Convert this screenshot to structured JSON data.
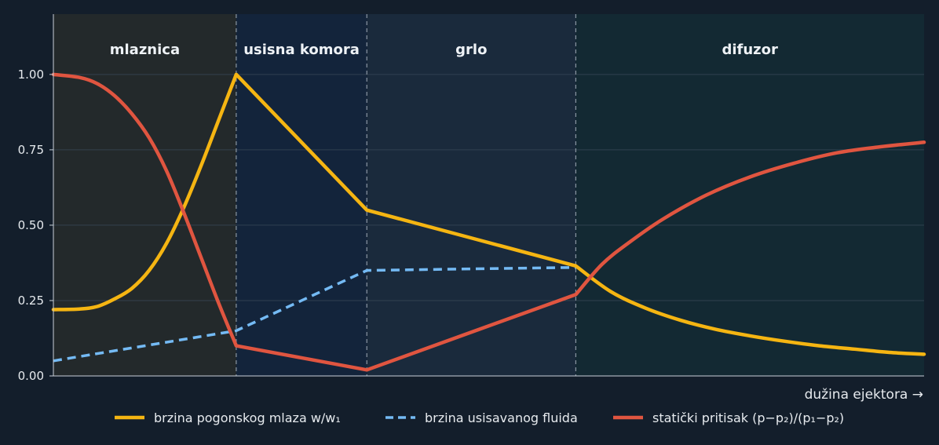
{
  "chart_data": {
    "type": "line",
    "xlabel": "dužina ejektora →",
    "ylabel": "",
    "title": "",
    "xlim": [
      0,
      10
    ],
    "ylim": [
      0,
      1.2
    ],
    "yticks": [
      "0.00",
      "0.25",
      "0.50",
      "0.75",
      "1.00"
    ],
    "grid": true,
    "legend_position": "bottom",
    "regions": [
      {
        "name": "mlaznica",
        "x0": 0,
        "x1": 2.1,
        "color": "#23292b"
      },
      {
        "name": "usisna komora",
        "x0": 2.1,
        "x1": 3.6,
        "color": "#13243b"
      },
      {
        "name": "grlo",
        "x0": 3.6,
        "x1": 6.0,
        "color": "#1a2a3c"
      },
      {
        "name": "difuzor",
        "x0": 6.0,
        "x1": 10,
        "color": "#132933"
      }
    ],
    "boundaries_x": [
      2.1,
      3.6,
      6.0
    ],
    "series": [
      {
        "name": "brzina pogonskog mlaza  w/w₁",
        "color": "#f5b512",
        "style": "solid",
        "x": [
          0,
          0.3,
          0.5,
          0.7,
          0.9,
          1.1,
          1.3,
          1.5,
          1.7,
          1.9,
          2.1,
          3.6,
          6.0,
          6.4,
          6.8,
          7.2,
          7.6,
          8.0,
          8.4,
          8.8,
          9.2,
          9.6,
          10
        ],
        "y": [
          0.22,
          0.222,
          0.23,
          0.255,
          0.29,
          0.35,
          0.44,
          0.56,
          0.7,
          0.85,
          1.0,
          0.55,
          0.365,
          0.28,
          0.225,
          0.185,
          0.155,
          0.133,
          0.115,
          0.1,
          0.089,
          0.078,
          0.072
        ]
      },
      {
        "name": "brzina usisavanog fluida",
        "color": "#74baf4",
        "style": "dashed",
        "x": [
          0,
          2.1,
          3.6,
          6.0
        ],
        "y": [
          0.05,
          0.15,
          0.35,
          0.36
        ]
      },
      {
        "name": "statički pritisak  (p−p₂)/(p₁−p₂)",
        "color": "#e05540",
        "style": "solid",
        "x": [
          0,
          0.3,
          0.5,
          0.7,
          0.9,
          1.1,
          1.3,
          1.5,
          1.7,
          1.9,
          2.1,
          3.6,
          6.0,
          6.3,
          6.6,
          7.0,
          7.5,
          8.0,
          8.5,
          9.0,
          9.5,
          10
        ],
        "y": [
          1.0,
          0.99,
          0.97,
          0.93,
          0.87,
          0.79,
          0.68,
          0.54,
          0.39,
          0.24,
          0.1,
          0.02,
          0.27,
          0.37,
          0.44,
          0.52,
          0.6,
          0.66,
          0.705,
          0.74,
          0.76,
          0.775
        ]
      }
    ]
  }
}
